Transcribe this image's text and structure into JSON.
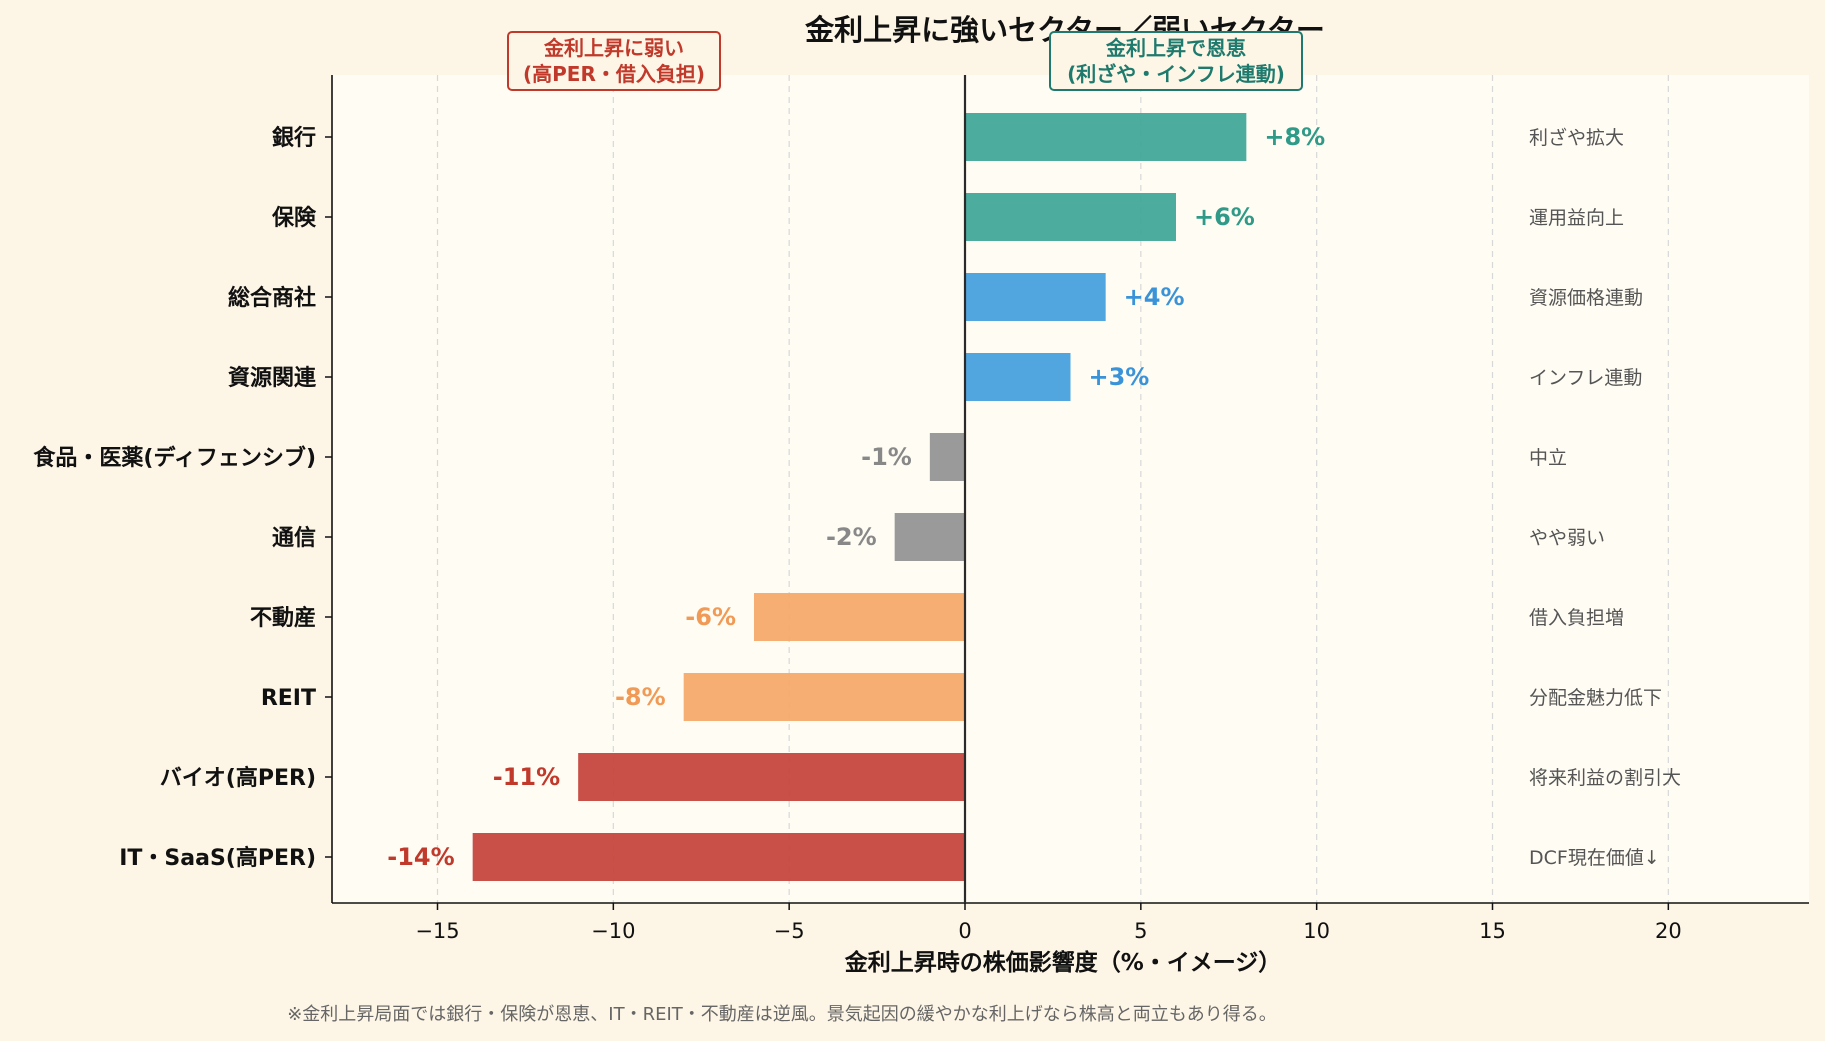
{
  "chart_data": {
    "type": "bar",
    "orientation": "horizontal",
    "title": "金利上昇に強いセクター／弱いセクター",
    "xlabel": "金利上昇時の株価影響度（%・イメージ）",
    "xlim": [
      -18,
      24
    ],
    "xticks": [
      -15,
      -10,
      -5,
      0,
      5,
      10,
      15,
      20
    ],
    "grid": true,
    "categories": [
      "銀行",
      "保険",
      "総合商社",
      "資源関連",
      "食品・医薬(ディフェンシブ)",
      "通信",
      "不動産",
      "REIT",
      "バイオ(高PER)",
      "IT・SaaS(高PER)"
    ],
    "values": [
      8,
      6,
      4,
      3,
      -1,
      -2,
      -6,
      -8,
      -11,
      -14
    ],
    "value_labels": [
      "+8%",
      "+6%",
      "+4%",
      "+3%",
      "-1%",
      "-2%",
      "-6%",
      "-8%",
      "-11%",
      "-14%"
    ],
    "colors": [
      "#3ea697",
      "#3ea697",
      "#459fde",
      "#459fde",
      "#929292",
      "#929292",
      "#f5a868",
      "#f5a868",
      "#c4433a",
      "#c4433a"
    ],
    "label_colors": [
      "#2e9a87",
      "#2e9a87",
      "#3a93d8",
      "#3a93d8",
      "#888888",
      "#888888",
      "#f09a55",
      "#f09a55",
      "#c0392b",
      "#c0392b"
    ],
    "notes": [
      "利ざや拡大",
      "運用益向上",
      "資源価格連動",
      "インフレ連動",
      "中立",
      "やや弱い",
      "借入負担増",
      "分配金魅力低下",
      "将来利益の割引大",
      "DCF現在価値↓"
    ],
    "annotations": {
      "weak": {
        "line1": "金利上昇に弱い",
        "line2": "(高PER・借入負担)",
        "color": "#c0392b"
      },
      "strong": {
        "line1": "金利上昇で恩恵",
        "line2": "(利ざや・インフレ連動)",
        "color": "#1f7a6e"
      }
    },
    "footnote": "※金利上昇局面では銀行・保険が恩恵、IT・REIT・不動産は逆風。景気起因の緩やかな利上げなら株高と両立もあり得る。"
  }
}
